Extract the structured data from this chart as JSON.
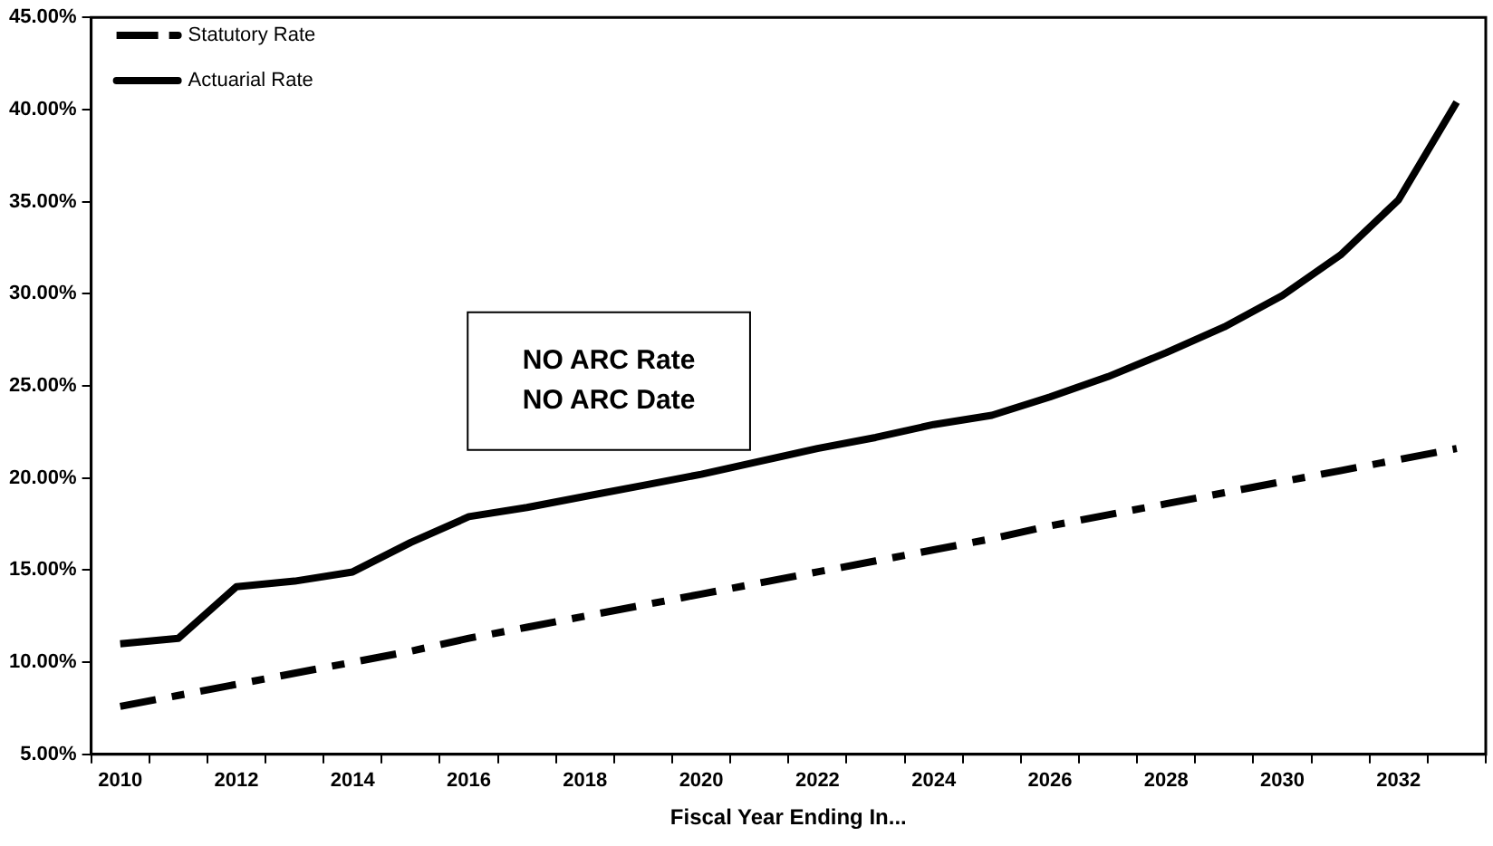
{
  "chart_data": {
    "type": "line",
    "xlabel": "Fiscal Year Ending In...",
    "categories": [
      "2010",
      null,
      "2012",
      null,
      "2014",
      null,
      "2016",
      null,
      "2018",
      null,
      "2020",
      null,
      "2022",
      null,
      "2024",
      null,
      "2026",
      null,
      "2028",
      null,
      "2030",
      null,
      "2032",
      null
    ],
    "series": [
      {
        "name": "Statutory Rate",
        "color": "#000000",
        "line_style": "dashed",
        "values": [
          7.6,
          8.2,
          8.8,
          9.4,
          10.0,
          10.6,
          11.3,
          11.9,
          12.5,
          13.1,
          13.7,
          14.3,
          14.9,
          15.5,
          16.1,
          16.7,
          17.4,
          18.0,
          18.6,
          19.2,
          19.8,
          20.4,
          21.0,
          21.6
        ]
      },
      {
        "name": "Actuarial Rate",
        "color": "#000000",
        "line_style": "solid",
        "values": [
          11.0,
          11.3,
          14.1,
          14.4,
          14.9,
          16.5,
          17.9,
          18.4,
          19.0,
          19.6,
          20.2,
          20.9,
          21.6,
          22.2,
          22.9,
          23.4,
          24.4,
          25.5,
          26.8,
          28.2,
          29.9,
          32.1,
          35.1,
          40.4
        ]
      }
    ],
    "ylim": [
      5,
      45
    ],
    "yticks": [
      {
        "value": 5,
        "label": "5.00%"
      },
      {
        "value": 10,
        "label": "10.00%"
      },
      {
        "value": 15,
        "label": "15.00%"
      },
      {
        "value": 20,
        "label": "20.00%"
      },
      {
        "value": 25,
        "label": "25.00%"
      },
      {
        "value": 30,
        "label": "30.00%"
      },
      {
        "value": 35,
        "label": "35.00%"
      },
      {
        "value": 40,
        "label": "40.00%"
      },
      {
        "value": 45,
        "label": "45.00%"
      }
    ],
    "grid": false,
    "legend": "top left",
    "marker": "none",
    "annotations": [
      "NO ARC Rate\nNO ARC Date"
    ]
  }
}
